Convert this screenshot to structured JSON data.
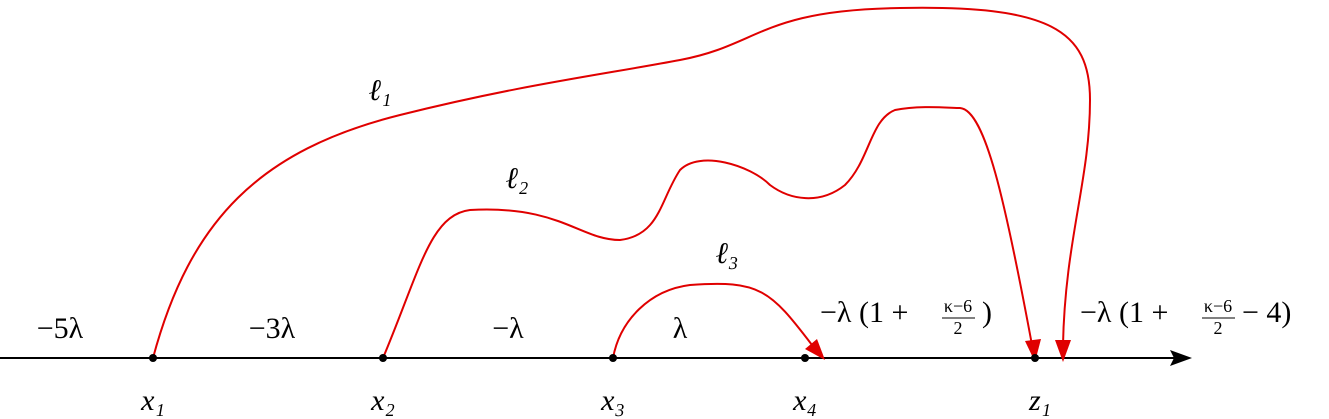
{
  "points": [
    "x₁",
    "x₂",
    "x₃",
    "x₄",
    "z₁"
  ],
  "curves": [
    "ℓ₁",
    "ℓ₂",
    "ℓ₃"
  ],
  "segments": [
    "−5λ",
    "−3λ",
    "−λ",
    "λ"
  ],
  "fraction_segments": [
    {
      "before": "−λ (1 +",
      "numerator": "κ−6",
      "denominator": "2",
      "after": ")"
    },
    {
      "before": "−λ (1 +",
      "numerator": "κ−6",
      "denominator": "2",
      "after": "− 4)"
    }
  ]
}
